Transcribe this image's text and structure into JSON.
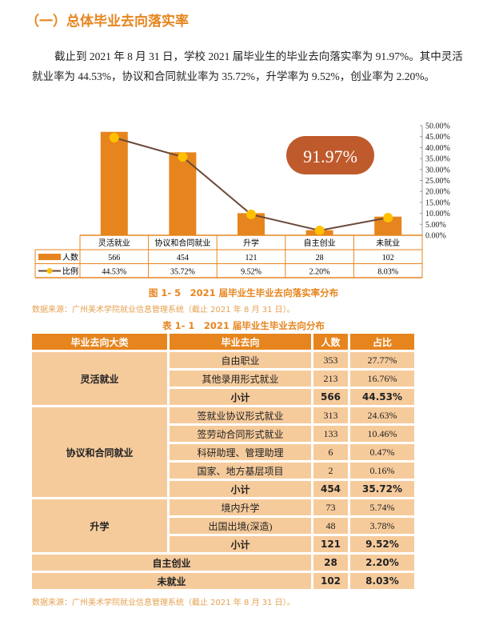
{
  "heading": "（一）总体毕业去向落实率",
  "paragraph": "截止到 2021 年 8 月 31 日，学校 2021 届毕业生的毕业去向落实率为 91.97%。其中灵活就业率为 44.53%，协议和合同就业率为 35.72%，升学率为 9.52%，创业率为 2.20%。",
  "chart_data": {
    "type": "bar",
    "categories": [
      "灵活就业",
      "协议和合同就业",
      "升学",
      "自主创业",
      "未就业"
    ],
    "series": [
      {
        "name": "人数",
        "type": "bar",
        "values": [
          566,
          454,
          121,
          28,
          102
        ],
        "color": "#e6851e",
        "labels": [
          "566",
          "454",
          "121",
          "28",
          "102"
        ]
      },
      {
        "name": "比例",
        "type": "line",
        "axis": "right",
        "values": [
          44.53,
          35.72,
          9.52,
          2.2,
          8.03
        ],
        "color": "#6b4a3a",
        "marker_color": "#ffc000",
        "labels": [
          "44.53%",
          "35.72%",
          "9.52%",
          "2.20%",
          "8.03%"
        ]
      }
    ],
    "right_axis": {
      "ylim": [
        0,
        50
      ],
      "ticks": [
        "0.00%",
        "5.00%",
        "10.00%",
        "15.00%",
        "20.00%",
        "25.00%",
        "30.00%",
        "35.00%",
        "40.00%",
        "45.00%",
        "50.00%"
      ]
    },
    "left_ylim": [
      0,
      600
    ],
    "annotation": "91.97%",
    "annotation_color": "#bf5a2c",
    "legend": "data-table"
  },
  "figure_caption": "图 1- 5　2021 届毕业生毕业去向落实率分布",
  "source": "数据来源：广州美术学院就业信息管理系统（截止 2021 年 8 月 31 日）。",
  "table_caption": "表 1- 1　2021 届毕业生毕业去向分布",
  "table": {
    "headers": [
      "毕业去向大类",
      "毕业去向",
      "人数",
      "占比"
    ],
    "groups": [
      {
        "name": "灵活就业",
        "rows": [
          [
            "自由职业",
            "353",
            "27.77%"
          ],
          [
            "其他录用形式就业",
            "213",
            "16.76%"
          ]
        ],
        "subtotal": [
          "小计",
          "566",
          "44.53%"
        ]
      },
      {
        "name": "协议和合同就业",
        "rows": [
          [
            "签就业协议形式就业",
            "313",
            "24.63%"
          ],
          [
            "签劳动合同形式就业",
            "133",
            "10.46%"
          ],
          [
            "科研助理、管理助理",
            "6",
            "0.47%"
          ],
          [
            "国家、地方基层项目",
            "2",
            "0.16%"
          ]
        ],
        "subtotal": [
          "小计",
          "454",
          "35.72%"
        ]
      },
      {
        "name": "升学",
        "rows": [
          [
            "境内升学",
            "73",
            "5.74%"
          ],
          [
            "出国出境(深造)",
            "48",
            "3.78%"
          ]
        ],
        "subtotal": [
          "小计",
          "121",
          "9.52%"
        ]
      }
    ],
    "singles": [
      [
        "自主创业",
        "28",
        "2.20%"
      ],
      [
        "未就业",
        "102",
        "8.03%"
      ]
    ]
  },
  "colors": {
    "accent": "#e6851e",
    "cell": "#f6cb9c"
  }
}
